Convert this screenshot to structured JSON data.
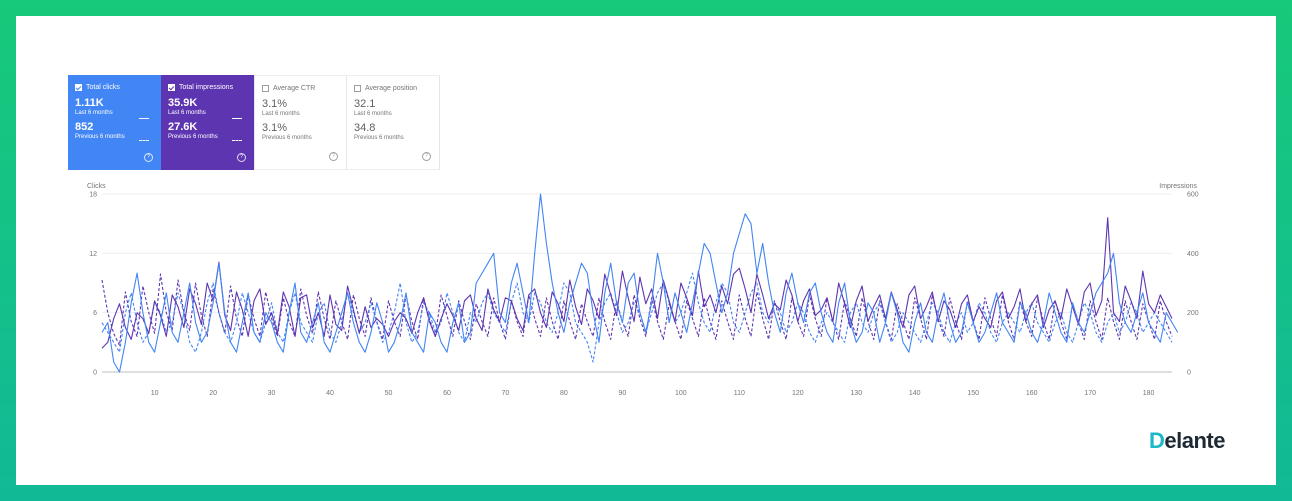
{
  "cards": [
    {
      "label": "Total clicks",
      "value": "1.11K",
      "sub": "Last 6 months",
      "value2": "852",
      "sub2": "Previous 6 months",
      "checked": true
    },
    {
      "label": "Total impressions",
      "value": "35.9K",
      "sub": "Last 6 months",
      "value2": "27.6K",
      "sub2": "Previous 6 months",
      "checked": true
    },
    {
      "label": "Average CTR",
      "value": "3.1%",
      "sub": "Last 6 months",
      "value2": "3.1%",
      "sub2": "Previous 6 months",
      "checked": false
    },
    {
      "label": "Average position",
      "value": "32.1",
      "sub": "Last 6 months",
      "value2": "34.8",
      "sub2": "Previous 6 months",
      "checked": false
    }
  ],
  "help_glyph": "?",
  "logo": {
    "first": "D",
    "rest": "elante"
  },
  "colors": {
    "clicks": "#4285f4",
    "impressions": "#5e35b1",
    "frame": "#17c97a"
  },
  "chart_data": {
    "type": "line",
    "ylabel": "Clicks",
    "y2label": "Impressions",
    "ylim": [
      0,
      18
    ],
    "y2lim": [
      0,
      600
    ],
    "yticks": [
      "0",
      "6",
      "12",
      "18"
    ],
    "y2ticks": [
      "0",
      "200",
      "400",
      "600"
    ],
    "xticks": [
      "10",
      "20",
      "30",
      "40",
      "50",
      "60",
      "70",
      "80",
      "90",
      "100",
      "110",
      "120",
      "130",
      "140",
      "150",
      "160",
      "170",
      "180"
    ],
    "xrange": [
      1,
      184
    ],
    "grid": true,
    "series": [
      {
        "name": "Total clicks",
        "axis": "left",
        "style": "solid",
        "color": "#4285f4",
        "values": [
          4,
          5,
          1,
          0,
          3,
          7,
          10,
          6,
          3,
          2,
          5,
          8,
          4,
          3,
          6,
          9,
          5,
          3,
          4,
          7,
          11,
          6,
          3,
          2,
          5,
          8,
          4,
          3,
          6,
          5,
          3,
          2,
          6,
          9,
          4,
          3,
          5,
          7,
          3,
          2,
          4,
          6,
          8,
          5,
          3,
          2,
          4,
          7,
          5,
          2,
          3,
          5,
          8,
          4,
          3,
          2,
          6,
          5,
          3,
          2,
          5,
          7,
          3,
          4,
          9,
          10,
          11,
          12,
          6,
          5,
          9,
          11,
          8,
          5,
          12,
          18,
          13,
          9,
          6,
          4,
          7,
          9,
          11,
          10,
          6,
          3,
          8,
          11,
          7,
          5,
          9,
          10,
          6,
          4,
          7,
          12,
          9,
          5,
          8,
          6,
          4,
          7,
          10,
          13,
          12,
          9,
          6,
          8,
          12,
          14,
          16,
          15,
          10,
          13,
          9,
          6,
          4,
          8,
          10,
          7,
          5,
          8,
          9,
          6,
          4,
          3,
          7,
          9,
          5,
          3,
          4,
          7,
          6,
          3,
          5,
          8,
          6,
          3,
          2,
          5,
          7,
          4,
          3,
          6,
          8,
          5,
          3,
          4,
          7,
          5,
          3,
          4,
          6,
          8,
          5,
          4,
          3,
          7,
          6,
          4,
          3,
          5,
          8,
          6,
          4,
          3,
          7,
          5,
          4,
          6,
          8,
          9,
          10,
          12,
          7,
          5,
          4,
          6,
          8,
          5,
          4,
          3,
          6,
          5,
          4
        ]
      },
      {
        "name": "Total clicks",
        "axis": "left",
        "style": "dashed",
        "color": "#4285f4",
        "values": [
          5,
          4,
          3,
          2,
          6,
          8,
          5,
          3,
          4,
          7,
          6,
          4,
          5,
          8,
          6,
          3,
          2,
          4,
          7,
          9,
          6,
          4,
          3,
          5,
          8,
          6,
          4,
          3,
          5,
          7,
          4,
          3,
          6,
          8,
          5,
          4,
          3,
          6,
          7,
          4,
          3,
          5,
          8,
          6,
          4,
          5,
          7,
          5,
          3,
          4,
          6,
          9,
          5,
          3,
          4,
          7,
          6,
          4,
          5,
          8,
          6,
          4,
          3,
          6,
          5,
          7,
          8,
          6,
          5,
          4,
          7,
          9,
          6,
          5,
          8,
          7,
          5,
          4,
          6,
          9,
          8,
          5,
          4,
          3,
          1,
          5,
          7,
          8,
          6,
          4,
          5,
          7,
          6,
          4,
          6,
          8,
          9,
          7,
          5,
          6,
          8,
          10,
          7,
          5,
          4,
          7,
          9,
          8,
          5,
          4,
          6,
          8,
          9,
          6,
          5,
          7,
          6,
          4,
          5,
          7,
          6,
          4,
          3,
          5,
          6,
          5,
          4,
          3,
          6,
          7,
          5,
          4,
          6,
          7,
          5,
          3,
          4,
          6,
          5,
          4,
          3,
          5,
          7,
          6,
          4,
          3,
          5,
          6,
          4,
          5,
          7,
          6,
          4,
          3,
          5,
          6,
          5,
          4,
          6,
          7,
          5,
          4,
          3,
          5,
          6,
          4,
          3,
          5,
          7,
          6,
          4,
          3,
          5,
          6,
          4,
          5,
          7,
          6,
          4,
          5,
          6,
          5,
          4,
          3
        ]
      },
      {
        "name": "Total impressions",
        "axis": "right",
        "style": "solid",
        "color": "#5e35b1",
        "values": [
          80,
          100,
          180,
          230,
          150,
          110,
          200,
          180,
          130,
          240,
          190,
          120,
          260,
          220,
          150,
          280,
          230,
          160,
          300,
          240,
          370,
          190,
          140,
          270,
          210,
          120,
          240,
          280,
          160,
          200,
          130,
          270,
          220,
          120,
          250,
          260,
          150,
          200,
          120,
          260,
          160,
          140,
          290,
          210,
          130,
          220,
          150,
          180,
          160,
          120,
          170,
          200,
          180,
          130,
          200,
          250,
          170,
          120,
          180,
          230,
          190,
          140,
          240,
          260,
          180,
          140,
          280,
          210,
          170,
          250,
          240,
          180,
          140,
          260,
          280,
          200,
          150,
          270,
          230,
          170,
          310,
          220,
          160,
          280,
          240,
          180,
          330,
          260,
          190,
          340,
          250,
          170,
          320,
          230,
          280,
          180,
          310,
          240,
          170,
          300,
          250,
          190,
          340,
          220,
          260,
          200,
          290,
          230,
          330,
          350,
          280,
          200,
          330,
          260,
          180,
          230,
          210,
          310,
          260,
          170,
          240,
          280,
          190,
          210,
          250,
          170,
          300,
          230,
          150,
          240,
          290,
          170,
          220,
          260,
          180,
          270,
          210,
          150,
          260,
          290,
          180,
          220,
          270,
          170,
          240,
          210,
          150,
          230,
          260,
          170,
          220,
          180,
          150,
          240,
          270,
          180,
          220,
          280,
          170,
          230,
          260,
          150,
          210,
          240,
          180,
          280,
          220,
          160,
          270,
          300,
          190,
          240,
          520,
          200,
          170,
          290,
          240,
          180,
          340,
          230,
          200,
          260,
          220,
          180
        ]
      },
      {
        "name": "Total impressions",
        "axis": "right",
        "style": "dashed",
        "color": "#5e35b1",
        "values": [
          310,
          200,
          130,
          90,
          270,
          170,
          120,
          290,
          200,
          130,
          330,
          200,
          140,
          310,
          200,
          140,
          300,
          190,
          120,
          280,
          200,
          130,
          290,
          180,
          120,
          260,
          180,
          120,
          270,
          180,
          120,
          250,
          170,
          120,
          280,
          190,
          130,
          270,
          180,
          110,
          240,
          170,
          110,
          260,
          180,
          120,
          250,
          170,
          110,
          240,
          170,
          120,
          260,
          170,
          110,
          250,
          180,
          120,
          260,
          190,
          120,
          240,
          170,
          110,
          230,
          170,
          120,
          250,
          170,
          110,
          240,
          170,
          120,
          260,
          180,
          120,
          250,
          170,
          110,
          240,
          170,
          110,
          230,
          170,
          120,
          250,
          170,
          110,
          240,
          170,
          120,
          260,
          180,
          120,
          250,
          170,
          110,
          230,
          170,
          110,
          240,
          180,
          120,
          250,
          170,
          110,
          240,
          170,
          110,
          260,
          180,
          120,
          270,
          180,
          110,
          240,
          170,
          110,
          250,
          170,
          120,
          260,
          180,
          120,
          250,
          170,
          110,
          240,
          180,
          120,
          250,
          170,
          110,
          240,
          170,
          110,
          230,
          170,
          110,
          250,
          180,
          110,
          260,
          180,
          120,
          250,
          170,
          110,
          240,
          170,
          110,
          250,
          180,
          120,
          260,
          170,
          110,
          240,
          170,
          120,
          250,
          170,
          110,
          240,
          170,
          110,
          230,
          170,
          110,
          240,
          170,
          110,
          250,
          170,
          110,
          240,
          170,
          110,
          230,
          170,
          110,
          240,
          170,
          120
        ]
      }
    ]
  }
}
